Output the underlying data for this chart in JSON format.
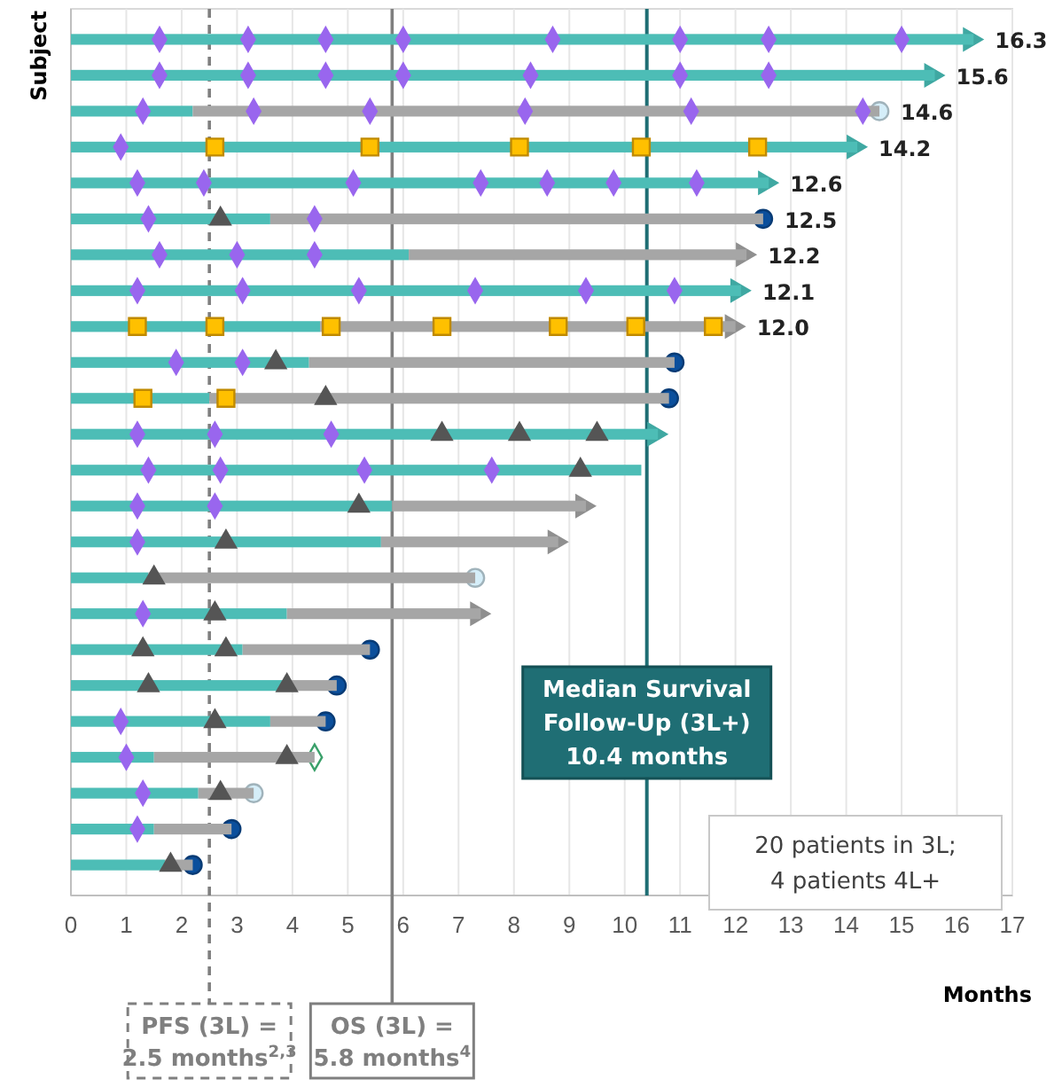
{
  "chart_data": {
    "type": "bar",
    "orientation": "horizontal",
    "stacked": true,
    "xlabel": "Months",
    "ylabel": "Subject",
    "categories": [
      null,
      null,
      null,
      null,
      null,
      null,
      null,
      null,
      null,
      null,
      null,
      null,
      null,
      null,
      null,
      null,
      null,
      null,
      null,
      null,
      null,
      null,
      null,
      null
    ],
    "xlim": [
      0,
      17
    ],
    "xticks": [
      0,
      1,
      2,
      3,
      4,
      5,
      6,
      7,
      8,
      9,
      10,
      11,
      12,
      13,
      14,
      15,
      16,
      17
    ],
    "grid": "x",
    "tick_labels": "x",
    "series": [
      {
        "type": "bar",
        "color": "#4dbdb6",
        "values": [
          16.3,
          15.6,
          2.2,
          14.2,
          12.6,
          3.6,
          6.1,
          12.1,
          4.5,
          4.3,
          2.5,
          10.6,
          10.3,
          5.8,
          5.6,
          1.4,
          3.9,
          3.1,
          3.9,
          3.6,
          1.5,
          2.3,
          1.5,
          1.7
        ]
      },
      {
        "type": "bar",
        "color": "#a6a6a6",
        "values": [
          null,
          null,
          12.4,
          null,
          null,
          8.9,
          6.1,
          null,
          7.5,
          6.6,
          8.3,
          null,
          null,
          3.5,
          3.2,
          5.9,
          3.5,
          2.3,
          0.9,
          1.0,
          2.9,
          1.0,
          1.4,
          0.5
        ]
      },
      {
        "type": "scatter",
        "marker": "triangle",
        "colors": [
          "#3fa8a2",
          "#3fa8a2",
          null,
          "#3fa8a2",
          "#3fa8a2",
          null,
          "#8f8f8f",
          "#3fa8a2",
          "#8f8f8f",
          null,
          null,
          "#3fa8a2",
          null,
          "#8f8f8f",
          "#8f8f8f",
          null,
          "#8f8f8f",
          null,
          null,
          null,
          null,
          null,
          null,
          null
        ],
        "values": [
          16.3,
          15.6,
          null,
          14.2,
          12.6,
          null,
          12.2,
          12.1,
          12.0,
          null,
          null,
          10.6,
          null,
          9.3,
          8.8,
          null,
          7.4,
          null,
          null,
          null,
          null,
          null,
          null,
          null
        ]
      },
      {
        "type": "scatter",
        "marker": "diamond",
        "color": "#9966ee",
        "values": [
          1.6,
          1.6,
          1.3,
          0.9,
          1.2,
          1.4,
          1.6,
          1.2,
          null,
          1.9,
          null,
          1.2,
          1.4,
          1.2,
          1.2,
          null,
          1.3,
          null,
          null,
          0.9,
          1.0,
          1.3,
          1.2,
          null
        ]
      },
      {
        "type": "scatter",
        "marker": "diamond",
        "color": "#9966ee",
        "values": [
          3.2,
          3.2,
          3.3,
          null,
          2.4,
          4.4,
          3.0,
          3.1,
          null,
          3.1,
          null,
          2.6,
          2.7,
          2.6,
          null,
          null,
          null,
          null,
          null,
          null,
          null,
          null,
          null,
          null
        ]
      },
      {
        "type": "scatter",
        "marker": "diamond",
        "color": "#9966ee",
        "values": [
          4.6,
          4.6,
          5.4,
          null,
          5.1,
          null,
          4.4,
          5.2,
          null,
          null,
          null,
          4.7,
          5.3,
          null,
          null,
          null,
          null,
          null,
          null,
          null,
          null,
          null,
          null,
          null
        ]
      },
      {
        "type": "scatter",
        "marker": "diamond",
        "color": "#9966ee",
        "values": [
          6.0,
          6.0,
          8.2,
          null,
          7.4,
          null,
          null,
          7.3,
          null,
          null,
          null,
          null,
          7.6,
          null,
          null,
          null,
          null,
          null,
          null,
          null,
          null,
          null,
          null,
          null
        ]
      },
      {
        "type": "scatter",
        "marker": "diamond",
        "color": "#9966ee",
        "values": [
          8.7,
          8.3,
          11.2,
          null,
          8.6,
          null,
          null,
          9.3,
          null,
          null,
          null,
          null,
          null,
          null,
          null,
          null,
          null,
          null,
          null,
          null,
          null,
          null,
          null,
          null
        ]
      },
      {
        "type": "scatter",
        "marker": "diamond",
        "color": "#9966ee",
        "values": [
          11.0,
          11.0,
          14.3,
          null,
          9.8,
          null,
          null,
          10.9,
          null,
          null,
          null,
          null,
          null,
          null,
          null,
          null,
          null,
          null,
          null,
          null,
          null,
          null,
          null,
          null
        ]
      },
      {
        "type": "scatter",
        "marker": "diamond",
        "color": "#9966ee",
        "values": [
          12.6,
          12.6,
          null,
          null,
          11.3,
          null,
          null,
          null,
          null,
          null,
          null,
          null,
          null,
          null,
          null,
          null,
          null,
          null,
          null,
          null,
          null,
          null,
          null,
          null
        ]
      },
      {
        "type": "scatter",
        "marker": "diamond",
        "color": "#9966ee",
        "values": [
          15.0,
          null,
          null,
          null,
          null,
          null,
          null,
          null,
          null,
          null,
          null,
          null,
          null,
          null,
          null,
          null,
          null,
          null,
          null,
          null,
          null,
          null,
          null,
          null
        ]
      },
      {
        "type": "scatter",
        "marker": "square",
        "color": "#ffc000",
        "values": [
          null,
          null,
          null,
          2.6,
          null,
          null,
          null,
          null,
          1.2,
          null,
          1.3,
          null,
          null,
          null,
          null,
          null,
          null,
          null,
          null,
          null,
          null,
          null,
          null,
          null
        ]
      },
      {
        "type": "scatter",
        "marker": "square",
        "color": "#ffc000",
        "values": [
          null,
          null,
          null,
          5.4,
          null,
          null,
          null,
          null,
          2.6,
          null,
          2.8,
          null,
          null,
          null,
          null,
          null,
          null,
          null,
          null,
          null,
          null,
          null,
          null,
          null
        ]
      },
      {
        "type": "scatter",
        "marker": "square",
        "color": "#ffc000",
        "values": [
          null,
          null,
          null,
          8.1,
          null,
          null,
          null,
          null,
          4.7,
          null,
          null,
          null,
          null,
          null,
          null,
          null,
          null,
          null,
          null,
          null,
          null,
          null,
          null,
          null
        ]
      },
      {
        "type": "scatter",
        "marker": "square",
        "color": "#ffc000",
        "values": [
          null,
          null,
          null,
          10.3,
          null,
          null,
          null,
          null,
          6.7,
          null,
          null,
          null,
          null,
          null,
          null,
          null,
          null,
          null,
          null,
          null,
          null,
          null,
          null,
          null
        ]
      },
      {
        "type": "scatter",
        "marker": "square",
        "color": "#ffc000",
        "values": [
          null,
          null,
          null,
          12.4,
          null,
          null,
          null,
          null,
          8.8,
          null,
          null,
          null,
          null,
          null,
          null,
          null,
          null,
          null,
          null,
          null,
          null,
          null,
          null,
          null
        ]
      },
      {
        "type": "scatter",
        "marker": "square",
        "color": "#ffc000",
        "values": [
          null,
          null,
          null,
          null,
          null,
          null,
          null,
          null,
          10.2,
          null,
          null,
          null,
          null,
          null,
          null,
          null,
          null,
          null,
          null,
          null,
          null,
          null,
          null,
          null
        ]
      },
      {
        "type": "scatter",
        "marker": "square",
        "color": "#ffc000",
        "values": [
          null,
          null,
          null,
          null,
          null,
          null,
          null,
          null,
          11.6,
          null,
          null,
          null,
          null,
          null,
          null,
          null,
          null,
          null,
          null,
          null,
          null,
          null,
          null,
          null
        ]
      },
      {
        "type": "scatter",
        "marker": "triangle",
        "color": "#555555",
        "values": [
          null,
          null,
          null,
          null,
          null,
          2.7,
          null,
          null,
          null,
          3.7,
          4.6,
          6.7,
          9.2,
          5.2,
          2.8,
          1.5,
          2.6,
          1.3,
          1.4,
          2.6,
          3.9,
          2.7,
          null,
          1.8
        ]
      },
      {
        "type": "scatter",
        "marker": "triangle",
        "color": "#555555",
        "values": [
          null,
          null,
          null,
          null,
          null,
          null,
          null,
          null,
          null,
          null,
          null,
          8.1,
          null,
          null,
          null,
          null,
          null,
          2.8,
          3.9,
          null,
          null,
          null,
          null,
          null
        ]
      },
      {
        "type": "scatter",
        "marker": "triangle",
        "color": "#555555",
        "values": [
          null,
          null,
          null,
          null,
          null,
          null,
          null,
          null,
          null,
          null,
          null,
          9.5,
          null,
          null,
          null,
          null,
          null,
          null,
          null,
          null,
          null,
          null,
          null,
          null
        ]
      },
      {
        "type": "scatter",
        "marker": "circle",
        "color": "#0b4f9c",
        "values": [
          null,
          null,
          null,
          null,
          null,
          12.5,
          null,
          null,
          null,
          10.9,
          10.8,
          null,
          null,
          null,
          null,
          null,
          null,
          5.4,
          4.8,
          4.6,
          null,
          null,
          2.9,
          2.2
        ]
      },
      {
        "type": "scatter",
        "marker": "circle",
        "color": "#d5eef9",
        "values": [
          null,
          null,
          14.6,
          null,
          null,
          null,
          null,
          null,
          null,
          null,
          null,
          null,
          null,
          null,
          null,
          7.3,
          null,
          null,
          null,
          null,
          null,
          3.3,
          null,
          null
        ]
      },
      {
        "type": "scatter",
        "marker": "diamond-open",
        "color": "#3aa06a",
        "values": [
          null,
          null,
          null,
          null,
          null,
          null,
          null,
          null,
          null,
          null,
          null,
          null,
          null,
          null,
          null,
          null,
          null,
          null,
          null,
          null,
          4.4,
          null,
          null,
          null
        ]
      }
    ],
    "totals": [
      "16.3",
      "15.6",
      "14.6",
      "14.2",
      "12.6",
      "12.5",
      "12.2",
      "12.1",
      "12.0",
      null,
      null,
      null,
      null,
      null,
      null,
      null,
      null,
      null,
      null,
      null,
      null,
      null,
      null,
      null
    ],
    "ref_lines": [
      {
        "axis": "x",
        "value": 2.5,
        "label": "PFS (3L) =\n2.5 months$^{2,3}$",
        "color": "#7f7f7f",
        "line_style": "dashed"
      },
      {
        "axis": "x",
        "value": 5.8,
        "label": "OS (3L) =\n5.8 months$^{4}$",
        "color": "#7f7f7f",
        "line_style": "solid"
      },
      {
        "axis": "x",
        "value": 10.4,
        "label": "Median Survival\nFollow-Up (3L+)\n10.4 months",
        "color": "#1f6e74",
        "line_style": "solid"
      }
    ],
    "annotations": [
      "20 patients in 3L;\n4 patients 4L+"
    ]
  }
}
